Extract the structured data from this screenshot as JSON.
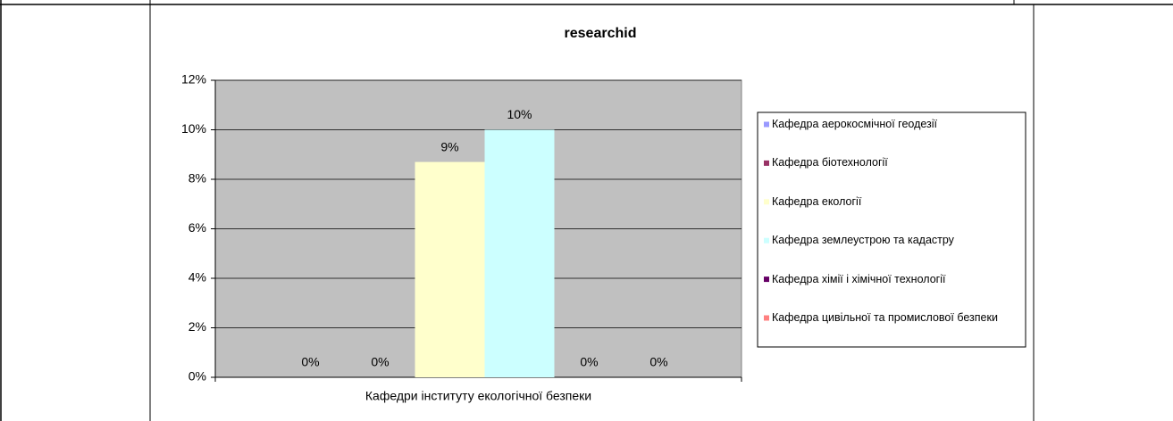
{
  "chart_data": {
    "type": "bar",
    "title": "researchid",
    "categories": [
      "Кафедри інституту  екологічної безпеки"
    ],
    "series": [
      {
        "name": "Кафедра аерокосмічної  геодезії",
        "color": "#9999ff",
        "values": [
          0
        ],
        "value_labels": [
          "0%"
        ]
      },
      {
        "name": "Кафедра біотехнології",
        "color": "#993366",
        "values": [
          0
        ],
        "value_labels": [
          "0%"
        ]
      },
      {
        "name": "Кафедра екології",
        "color": "#ffffcc",
        "values": [
          8.7
        ],
        "value_labels": [
          "9%"
        ]
      },
      {
        "name": "Кафедра землеустрою та кадастру",
        "color": "#ccffff",
        "values": [
          10
        ],
        "value_labels": [
          "10%"
        ]
      },
      {
        "name": "Кафедра хімії  і хімічної  технології",
        "color": "#660066",
        "values": [
          0
        ],
        "value_labels": [
          "0%"
        ]
      },
      {
        "name": "Кафедра цивільної та промислової безпеки",
        "color": "#ff8080",
        "values": [
          0
        ],
        "value_labels": [
          "0%"
        ]
      }
    ],
    "ylim": [
      0,
      12
    ],
    "yticks": [
      {
        "value": 0,
        "label": "0%"
      },
      {
        "value": 2,
        "label": "2%"
      },
      {
        "value": 4,
        "label": "4%"
      },
      {
        "value": 6,
        "label": "6%"
      },
      {
        "value": 8,
        "label": "8%"
      },
      {
        "value": 10,
        "label": "10%"
      },
      {
        "value": 12,
        "label": "12%"
      }
    ],
    "grid": true,
    "legend": "right"
  }
}
